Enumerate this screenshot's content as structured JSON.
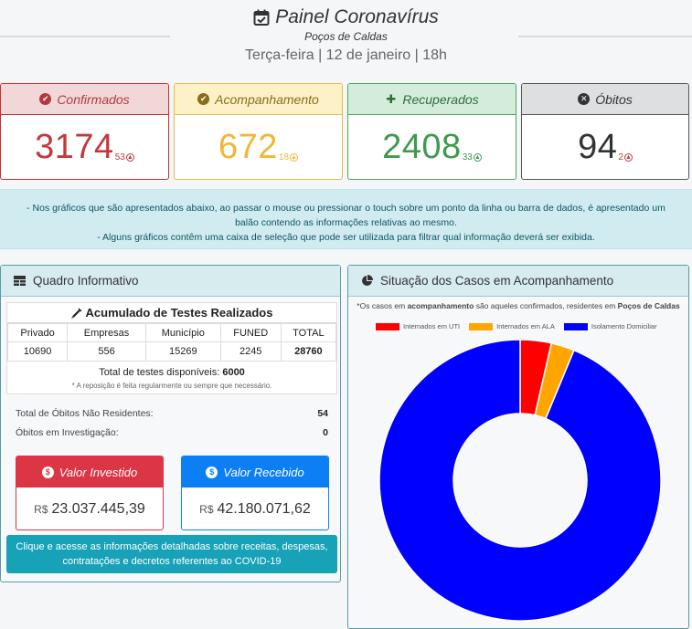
{
  "header": {
    "title": "Painel Coronavírus",
    "subtitle": "Poços de Caldas",
    "date": "Terça-feira | 12 de janeiro | 18h"
  },
  "cards": [
    {
      "label": "Confirmados",
      "value": "3174",
      "delta": "53",
      "icon": "shield-check-icon"
    },
    {
      "label": "Acompanhamento",
      "value": "672",
      "delta": "18",
      "icon": "shield-check-icon"
    },
    {
      "label": "Recuperados",
      "value": "2408",
      "delta": "33",
      "icon": "bandage-icon"
    },
    {
      "label": "Óbitos",
      "value": "94",
      "delta": "2",
      "icon": "x-circle-icon"
    }
  ],
  "banner": {
    "line1": "- Nos gráficos que são apresentados abaixo, ao passar o mouse ou pressionar o touch sobre um ponto da linha ou barra de dados, é apresentado um",
    "line2": "balão contendo as informações relativas ao mesmo.",
    "line3": "- Alguns gráficos contêm uma caixa de seleção que pode ser utilizada para filtrar qual informação deverá ser exibida."
  },
  "quadro": {
    "title": "Quadro Informativo",
    "tests_title": "Acumulado de Testes Realizados",
    "columns": [
      "Privado",
      "Empresas",
      "Município",
      "FUNED",
      "TOTAL"
    ],
    "values": [
      "10690",
      "556",
      "15269",
      "2245",
      "28760"
    ],
    "available_label": "Total de testes disponíveis:",
    "available_value": "6000",
    "note": "* A reposição é feita regularmente ou sempre que necessário.",
    "rows": [
      {
        "label": "Total de Óbitos Não Residentes:",
        "value": "54"
      },
      {
        "label": "Óbitos em Investigação:",
        "value": "0"
      }
    ],
    "invested_label": "Valor Investido",
    "invested_currency": "R$",
    "invested_value": "23.037.445,39",
    "received_label": "Valor Recebido",
    "received_currency": "R$",
    "received_value": "42.180.071,62",
    "cta_line1": "Clique e acesse as informações detalhadas sobre receitas, despesas,",
    "cta_line2": "contratações e decretos referentes ao COVID-19"
  },
  "situacao": {
    "title": "Situação dos Casos em Acompanhamento",
    "note_pre": "*Os casos em ",
    "note_bold1": "acompanhamento",
    "note_mid": " são aqueles confirmados, residentes em ",
    "note_bold2": "Poços de Caldas"
  },
  "chart_data": {
    "type": "pie",
    "categories": [
      "Internados em UTI",
      "Internados em ALA",
      "Isolamento Domiciliar"
    ],
    "values": [
      24,
      18,
      630
    ],
    "colors": [
      "#ff0000",
      "#ffa500",
      "#0000ff"
    ],
    "legend": "top"
  }
}
